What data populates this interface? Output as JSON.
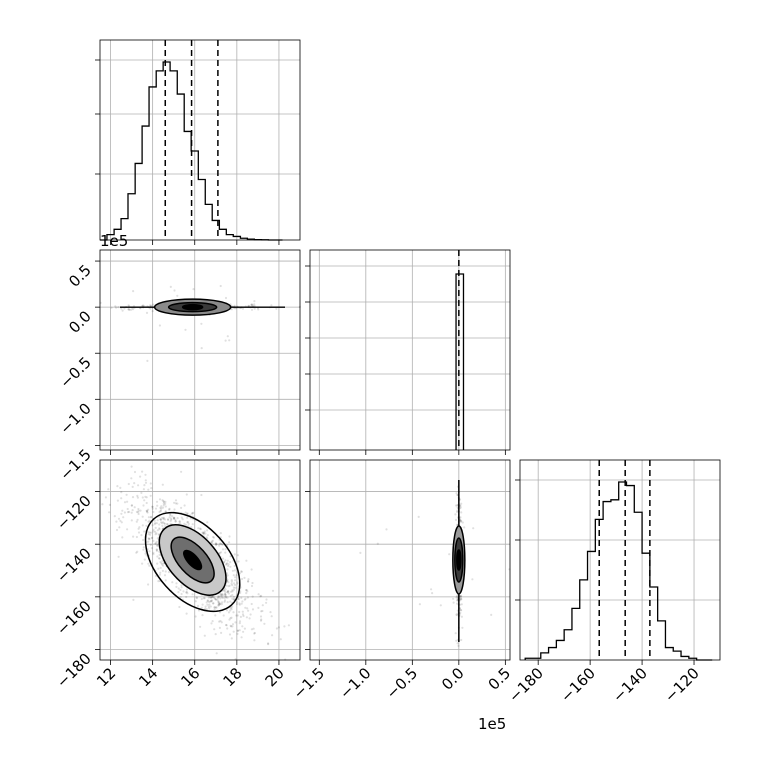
{
  "chart_data": {
    "type": "corner",
    "grid": true,
    "axis_offsets": {
      "param1": "1e5",
      "param2": "1e5"
    },
    "panels": {
      "hist_param1": {
        "type": "histogram",
        "xlim": [
          11.5,
          21.0
        ],
        "quantile_lines": [
          14.6,
          15.85,
          17.1
        ],
        "bin_edges": [
          11.5,
          11.83,
          12.17,
          12.5,
          12.83,
          13.17,
          13.5,
          13.83,
          14.17,
          14.5,
          14.83,
          15.17,
          15.5,
          15.83,
          16.17,
          16.5,
          16.83,
          17.17,
          17.5,
          17.83,
          18.17,
          18.5,
          18.83,
          19.17,
          19.5,
          19.83,
          20.17
        ],
        "counts": [
          0,
          0.03,
          0.06,
          0.12,
          0.26,
          0.43,
          0.64,
          0.86,
          0.95,
          1.0,
          0.95,
          0.82,
          0.61,
          0.5,
          0.34,
          0.2,
          0.11,
          0.06,
          0.03,
          0.02,
          0.01,
          0.005,
          0.002,
          0.001,
          0,
          0
        ]
      },
      "scatter_p1_p2": {
        "type": "scatter_contour",
        "xlim": [
          11.5,
          21.0
        ],
        "ylim": [
          -1.55,
          0.62
        ],
        "xticks": [
          "12",
          "14",
          "16",
          "18",
          "20"
        ],
        "yticks": [
          "0.5",
          "0.0",
          "−0.5",
          "−1.0",
          "−1.5"
        ],
        "ytick_values": [
          0.5,
          0.0,
          -0.5,
          -1.0,
          -1.5
        ],
        "center": [
          15.9,
          0.0
        ]
      },
      "hist_param2": {
        "type": "histogram",
        "xlim": [
          -1.6,
          0.55
        ],
        "quantile_lines": [
          -0.02,
          0.0,
          0.02
        ],
        "bar_range": [
          -0.03,
          0.05
        ],
        "bar_height": 0.88
      },
      "scatter_p1_p3": {
        "type": "scatter_contour",
        "xlim": [
          11.5,
          21.0
        ],
        "ylim": [
          -184,
          -108
        ],
        "xticks": [
          "12",
          "14",
          "16",
          "18",
          "20"
        ],
        "xtick_values": [
          12,
          14,
          16,
          18,
          20
        ],
        "yticks": [
          "−120",
          "−140",
          "−160",
          "−180"
        ],
        "ytick_values": [
          -120,
          -140,
          -160,
          -180
        ],
        "center": [
          15.9,
          -146
        ]
      },
      "scatter_p2_p3": {
        "type": "scatter_contour",
        "xlim": [
          -1.6,
          0.55
        ],
        "ylim": [
          -184,
          -108
        ],
        "xticks": [
          "−1.5",
          "−1.0",
          "−0.5",
          "0.0",
          "0.5"
        ],
        "xtick_values": [
          -1.5,
          -1.0,
          -0.5,
          0.0,
          0.5
        ],
        "center": [
          0.0,
          -146
        ]
      },
      "hist_param3": {
        "type": "histogram",
        "xlim": [
          -187,
          -110
        ],
        "quantile_lines": [
          -156.5,
          -146.5,
          -137
        ],
        "xticks": [
          "−180",
          "−160",
          "−140",
          "−120"
        ],
        "xtick_values": [
          -180,
          -160,
          -140,
          -120
        ],
        "bin_edges": [
          -185,
          -182,
          -179,
          -176,
          -173,
          -170,
          -167,
          -164,
          -161,
          -158,
          -155,
          -152,
          -149,
          -146,
          -143,
          -140,
          -137,
          -134,
          -131,
          -128,
          -125,
          -122,
          -119,
          -116,
          -113
        ],
        "counts": [
          0.01,
          0.01,
          0.04,
          0.07,
          0.11,
          0.17,
          0.29,
          0.45,
          0.61,
          0.79,
          0.89,
          0.9,
          1.0,
          0.98,
          0.83,
          0.6,
          0.41,
          0.22,
          0.07,
          0.05,
          0.02,
          0.01,
          0,
          0
        ]
      }
    }
  }
}
